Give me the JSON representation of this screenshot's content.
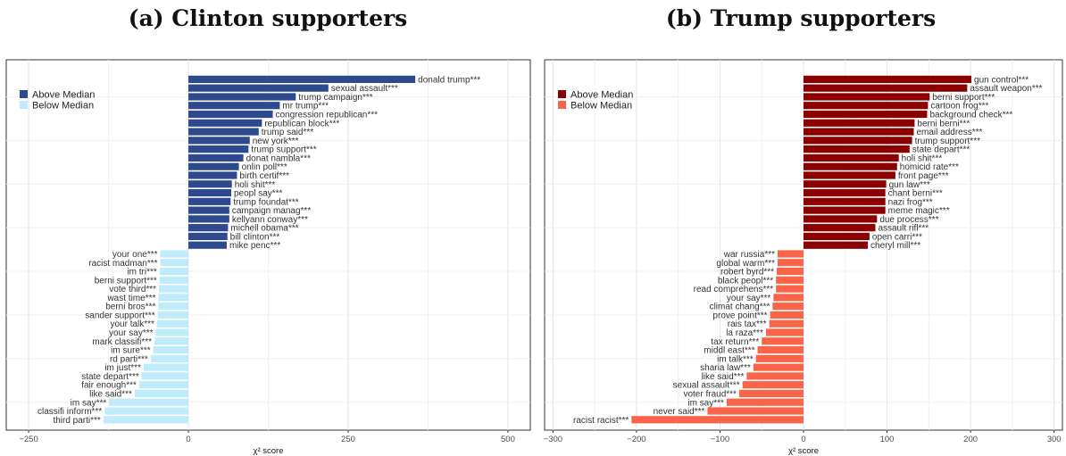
{
  "chart_data": [
    {
      "type": "bar",
      "orientation": "horizontal",
      "title": "(a) Clinton supporters",
      "xlabel": "χ² score",
      "xlim": [
        -285,
        535
      ],
      "xticks": [
        -250,
        0,
        250,
        500
      ],
      "grid": true,
      "legend_position": "top-left",
      "series": [
        {
          "name": "Above Median",
          "color": "#2E4A8F",
          "categories": [
            "donald trump***",
            "sexual assault***",
            "trump campaign***",
            "mr trump***",
            "congression republican***",
            "republican block***",
            "trump said***",
            "new york***",
            "trump support***",
            "donat nambla***",
            "onlin poll***",
            "birth certif***",
            "holi shit***",
            "peopl say***",
            "trump foundat***",
            "campaign manag***",
            "kellyann conway***",
            "michell obama***",
            "bill clinton***",
            "mike penc***"
          ],
          "values": [
            355,
            219,
            168,
            143,
            132,
            115,
            110,
            96,
            94,
            86,
            79,
            76,
            68,
            67,
            66,
            64,
            64,
            62,
            61,
            60
          ]
        },
        {
          "name": "Below Median",
          "color": "#BFEBFA",
          "categories": [
            "your one***",
            "racist madman***",
            "im tri***",
            "berni support***",
            "vote third***",
            "wast time***",
            "berni bros***",
            "sander support***",
            "your talk***",
            "your say***",
            "mark classifi***",
            "im sure***",
            "rd parti***",
            "im just***",
            "state depart***",
            "fair enough***",
            "like said***",
            "im say***",
            "classifi inform***",
            "third parti***"
          ],
          "values": [
            -44,
            -44,
            -45,
            -45,
            -46,
            -47,
            -47,
            -48,
            -49,
            -51,
            -53,
            -55,
            -59,
            -70,
            -73,
            -77,
            -84,
            -124,
            -131,
            -133
          ]
        }
      ]
    },
    {
      "type": "bar",
      "orientation": "horizontal",
      "title": "(b) Trump supporters",
      "xlabel": "χ² score",
      "xlim": [
        -310,
        310
      ],
      "xticks": [
        -300,
        -200,
        -100,
        0,
        100,
        200,
        300
      ],
      "grid": true,
      "legend_position": "top-left",
      "series": [
        {
          "name": "Above Median",
          "color": "#8B0000",
          "categories": [
            "gun control***",
            "assault weapon***",
            "berni support***",
            "cartoon frog***",
            "background check***",
            "berni berni***",
            "email address***",
            "trump support***",
            "state depart***",
            "holi shit***",
            "homicid rate***",
            "front page***",
            "gun law***",
            "chant berni***",
            "nazi frog***",
            "meme magic***",
            "due process***",
            "assault rifl***",
            "open carri***",
            "cheryl mill***"
          ],
          "values": [
            201,
            196,
            151,
            149,
            148,
            133,
            132,
            130,
            127,
            114,
            112,
            110,
            99,
            98,
            98,
            98,
            88,
            86,
            79,
            77
          ]
        },
        {
          "name": "Below Median",
          "color": "#FA6448",
          "categories": [
            "war russia***",
            "global warm***",
            "robert byrd***",
            "black peopl***",
            "read comprehens***",
            "your say***",
            "climat chang***",
            "prove point***",
            "rais tax***",
            "la raza***",
            "tax return***",
            "middl east***",
            "im talk***",
            "sharia law***",
            "like said***",
            "sexual assault***",
            "voter fraud***",
            "im say***",
            "never said***",
            "racist racist***"
          ],
          "values": [
            -31,
            -31,
            -32,
            -33,
            -33,
            -36,
            -37,
            -40,
            -41,
            -45,
            -50,
            -55,
            -57,
            -60,
            -68,
            -73,
            -77,
            -92,
            -115,
            -206
          ]
        }
      ]
    }
  ]
}
